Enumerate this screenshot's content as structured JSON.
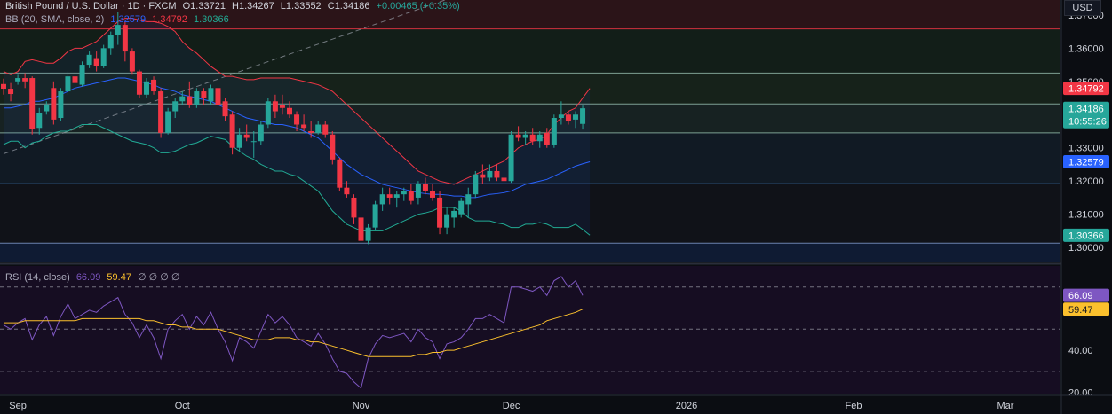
{
  "header": {
    "symbol": "British Pound / U.S. Dollar · 1D · FXCM",
    "open": "O1.33721",
    "high": "H1.34267",
    "low": "L1.33552",
    "close": "C1.34186",
    "change": "+0.00465 (+0.35%)",
    "currency": "USD"
  },
  "bb_legend": {
    "label": "BB (20, SMA, close, 2)",
    "basis": "1.32579",
    "upper": "1.34792",
    "lower": "1.30366"
  },
  "rsi_legend": {
    "label": "RSI (14, close)",
    "rsi": "66.09",
    "ma": "59.47",
    "extras": "∅ ∅ ∅ ∅"
  },
  "colors": {
    "up": "#26a69a",
    "down": "#f23645",
    "bb_basis": "#2962ff",
    "bb_upper": "#f23645",
    "bb_lower": "#22ab94",
    "rsi": "#7e57c2",
    "rsi_ma": "#fbc02d"
  },
  "chart_data": {
    "type": "candlestick",
    "x_labels": [
      "Sep",
      "Oct",
      "Nov",
      "Dec",
      "2026",
      "Feb",
      "Mar"
    ],
    "price_ticks": [
      "1.37000",
      "1.36000",
      "1.35000",
      "1.33000",
      "1.32000",
      "1.31000",
      "1.30000"
    ],
    "price_range": [
      1.2955,
      1.3745
    ],
    "price_badges": [
      {
        "text": "1.34792",
        "value": 1.34792,
        "color": "#f23645"
      },
      {
        "text": "1.34186",
        "value": 1.34186,
        "color": "#26a69a",
        "sub": "10:55:26"
      },
      {
        "text": "1.32579",
        "value": 1.32579,
        "color": "#2962ff"
      },
      {
        "text": "1.30366",
        "value": 1.30366,
        "color": "#26a69a"
      }
    ],
    "horizontal_levels": [
      1.3658,
      1.3525,
      1.3432,
      1.3345,
      1.3192,
      1.3013
    ],
    "trendline": {
      "from": [
        0,
        1.3282
      ],
      "to": [
        84,
        1.3912
      ]
    },
    "candles": [
      [
        1.3492,
        1.3508,
        1.346,
        1.3478
      ],
      [
        1.3478,
        1.3495,
        1.344,
        1.3462
      ],
      [
        1.35,
        1.352,
        1.349,
        1.351
      ],
      [
        1.351,
        1.3525,
        1.348,
        1.35
      ],
      [
        1.351,
        1.3515,
        1.334,
        1.3358
      ],
      [
        1.336,
        1.342,
        1.334,
        1.3405
      ],
      [
        1.341,
        1.344,
        1.34,
        1.343
      ],
      [
        1.348,
        1.35,
        1.337,
        1.3385
      ],
      [
        1.339,
        1.348,
        1.338,
        1.347
      ],
      [
        1.347,
        1.353,
        1.346,
        1.3515
      ],
      [
        1.3515,
        1.353,
        1.348,
        1.3495
      ],
      [
        1.349,
        1.356,
        1.3485,
        1.355
      ],
      [
        1.355,
        1.359,
        1.354,
        1.358
      ],
      [
        1.357,
        1.359,
        1.353,
        1.3545
      ],
      [
        1.3545,
        1.361,
        1.354,
        1.36
      ],
      [
        1.36,
        1.365,
        1.358,
        1.364
      ],
      [
        1.364,
        1.371,
        1.361,
        1.367
      ],
      [
        1.367,
        1.368,
        1.356,
        1.359
      ],
      [
        1.359,
        1.36,
        1.352,
        1.353
      ],
      [
        1.353,
        1.3535,
        1.345,
        1.346
      ],
      [
        1.346,
        1.351,
        1.345,
        1.35
      ],
      [
        1.3505,
        1.3515,
        1.346,
        1.347
      ],
      [
        1.347,
        1.348,
        1.333,
        1.3345
      ],
      [
        1.3345,
        1.342,
        1.334,
        1.341
      ],
      [
        1.341,
        1.345,
        1.339,
        1.344
      ],
      [
        1.344,
        1.347,
        1.343,
        1.3455
      ],
      [
        1.3455,
        1.35,
        1.342,
        1.343
      ],
      [
        1.343,
        1.348,
        1.342,
        1.347
      ],
      [
        1.347,
        1.348,
        1.343,
        1.345
      ],
      [
        1.344,
        1.349,
        1.343,
        1.348
      ],
      [
        1.348,
        1.349,
        1.342,
        1.343
      ],
      [
        1.344,
        1.345,
        1.338,
        1.3395
      ],
      [
        1.34,
        1.341,
        1.328,
        1.33
      ],
      [
        1.33,
        1.336,
        1.329,
        1.334
      ],
      [
        1.334,
        1.337,
        1.332,
        1.333
      ],
      [
        1.332,
        1.335,
        1.327,
        1.332
      ],
      [
        1.332,
        1.338,
        1.331,
        1.337
      ],
      [
        1.337,
        1.345,
        1.336,
        1.344
      ],
      [
        1.344,
        1.346,
        1.339,
        1.341
      ],
      [
        1.343,
        1.346,
        1.34,
        1.342
      ],
      [
        1.342,
        1.344,
        1.339,
        1.34
      ],
      [
        1.34,
        1.341,
        1.335,
        1.337
      ],
      [
        1.337,
        1.34,
        1.335,
        1.336
      ],
      [
        1.335,
        1.338,
        1.333,
        1.3345
      ],
      [
        1.3345,
        1.338,
        1.334,
        1.337
      ],
      [
        1.337,
        1.338,
        1.333,
        1.334
      ],
      [
        1.334,
        1.335,
        1.325,
        1.3265
      ],
      [
        1.3265,
        1.327,
        1.317,
        1.318
      ],
      [
        1.318,
        1.32,
        1.315,
        1.316
      ],
      [
        1.315,
        1.316,
        1.307,
        1.309
      ],
      [
        1.309,
        1.31,
        1.301,
        1.302
      ],
      [
        1.302,
        1.307,
        1.301,
        1.306
      ],
      [
        1.306,
        1.314,
        1.305,
        1.313
      ],
      [
        1.313,
        1.318,
        1.311,
        1.316
      ],
      [
        1.316,
        1.318,
        1.313,
        1.315
      ],
      [
        1.315,
        1.317,
        1.312,
        1.316
      ],
      [
        1.316,
        1.318,
        1.314,
        1.317
      ],
      [
        1.317,
        1.319,
        1.313,
        1.314
      ],
      [
        1.315,
        1.32,
        1.313,
        1.319
      ],
      [
        1.319,
        1.321,
        1.316,
        1.317
      ],
      [
        1.317,
        1.319,
        1.314,
        1.315
      ],
      [
        1.315,
        1.317,
        1.304,
        1.306
      ],
      [
        1.306,
        1.312,
        1.304,
        1.31
      ],
      [
        1.309,
        1.312,
        1.306,
        1.311
      ],
      [
        1.31,
        1.315,
        1.309,
        1.314
      ],
      [
        1.313,
        1.318,
        1.309,
        1.316
      ],
      [
        1.316,
        1.323,
        1.315,
        1.322
      ],
      [
        1.322,
        1.325,
        1.319,
        1.321
      ],
      [
        1.321,
        1.325,
        1.32,
        1.323
      ],
      [
        1.323,
        1.325,
        1.32,
        1.321
      ],
      [
        1.321,
        1.323,
        1.319,
        1.32
      ],
      [
        1.32,
        1.335,
        1.3195,
        1.334
      ],
      [
        1.334,
        1.3365,
        1.332,
        1.333
      ],
      [
        1.333,
        1.335,
        1.331,
        1.334
      ],
      [
        1.334,
        1.336,
        1.331,
        1.332
      ],
      [
        1.332,
        1.335,
        1.33,
        1.334
      ],
      [
        1.3345,
        1.336,
        1.33,
        1.331
      ],
      [
        1.331,
        1.34,
        1.33,
        1.339
      ],
      [
        1.339,
        1.344,
        1.337,
        1.34
      ],
      [
        1.34,
        1.341,
        1.337,
        1.338
      ],
      [
        1.3385,
        1.341,
        1.336,
        1.34
      ],
      [
        1.3372,
        1.3427,
        1.3355,
        1.3419
      ]
    ],
    "bollinger": {
      "upper": [
        1.353,
        1.352,
        1.353,
        1.356,
        1.3565,
        1.356,
        1.3555,
        1.3555,
        1.357,
        1.359,
        1.36,
        1.36,
        1.361,
        1.362,
        1.364,
        1.366,
        1.368,
        1.369,
        1.369,
        1.3685,
        1.368,
        1.368,
        1.3675,
        1.3665,
        1.365,
        1.362,
        1.36,
        1.3585,
        1.3565,
        1.3545,
        1.353,
        1.3515,
        1.3515,
        1.351,
        1.3505,
        1.3505,
        1.351,
        1.351,
        1.351,
        1.351,
        1.351,
        1.3505,
        1.35,
        1.3495,
        1.349,
        1.348,
        1.347,
        1.345,
        1.343,
        1.341,
        1.339,
        1.337,
        1.335,
        1.333,
        1.331,
        1.329,
        1.327,
        1.325,
        1.323,
        1.322,
        1.321,
        1.32,
        1.3195,
        1.319,
        1.32,
        1.321,
        1.322,
        1.323,
        1.324,
        1.325,
        1.326,
        1.328,
        1.33,
        1.331,
        1.332,
        1.3325,
        1.334,
        1.337,
        1.339,
        1.341,
        1.342,
        1.345,
        1.3479
      ],
      "basis": [
        1.342,
        1.342,
        1.3425,
        1.343,
        1.344,
        1.344,
        1.3445,
        1.345,
        1.346,
        1.347,
        1.348,
        1.3485,
        1.349,
        1.3495,
        1.35,
        1.3505,
        1.351,
        1.351,
        1.3505,
        1.35,
        1.3495,
        1.349,
        1.348,
        1.3475,
        1.347,
        1.346,
        1.3455,
        1.345,
        1.3445,
        1.344,
        1.343,
        1.342,
        1.341,
        1.34,
        1.339,
        1.3385,
        1.338,
        1.3375,
        1.337,
        1.337,
        1.3365,
        1.336,
        1.335,
        1.334,
        1.333,
        1.331,
        1.329,
        1.327,
        1.325,
        1.3235,
        1.322,
        1.321,
        1.32,
        1.319,
        1.3185,
        1.318,
        1.3175,
        1.317,
        1.3165,
        1.3162,
        1.316,
        1.316,
        1.3158,
        1.3155,
        1.3155,
        1.315,
        1.315,
        1.3155,
        1.316,
        1.3162,
        1.3165,
        1.317,
        1.318,
        1.319,
        1.3195,
        1.32,
        1.3205,
        1.3215,
        1.3225,
        1.3235,
        1.3245,
        1.3252,
        1.3258
      ],
      "lower": [
        1.331,
        1.332,
        1.332,
        1.33,
        1.3315,
        1.332,
        1.3335,
        1.3345,
        1.335,
        1.335,
        1.336,
        1.337,
        1.337,
        1.337,
        1.336,
        1.335,
        1.334,
        1.333,
        1.332,
        1.3315,
        1.331,
        1.33,
        1.3285,
        1.3285,
        1.329,
        1.33,
        1.331,
        1.3315,
        1.3325,
        1.3335,
        1.333,
        1.3325,
        1.3305,
        1.329,
        1.3275,
        1.3265,
        1.325,
        1.324,
        1.323,
        1.323,
        1.322,
        1.3215,
        1.32,
        1.3185,
        1.317,
        1.314,
        1.311,
        1.309,
        1.307,
        1.306,
        1.305,
        1.305,
        1.305,
        1.305,
        1.306,
        1.307,
        1.308,
        1.309,
        1.31,
        1.3104,
        1.311,
        1.312,
        1.3121,
        1.312,
        1.311,
        1.309,
        1.308,
        1.308,
        1.308,
        1.3074,
        1.307,
        1.306,
        1.306,
        1.307,
        1.307,
        1.3075,
        1.307,
        1.306,
        1.306,
        1.306,
        1.307,
        1.3054,
        1.3037
      ]
    },
    "rsi_ticks": [
      "40.00",
      "20.00"
    ],
    "rsi_range": [
      19,
      80
    ],
    "rsi_levels": [
      70,
      50,
      30
    ],
    "rsi_badges": [
      {
        "text": "66.09",
        "value": 66.09,
        "color": "#7e57c2"
      },
      {
        "text": "59.47",
        "value": 59.47,
        "color": "#fbc02d"
      }
    ],
    "rsi": [
      52,
      50,
      53,
      55,
      45,
      52,
      56,
      47,
      56,
      62,
      55,
      57,
      59,
      58,
      61,
      63,
      65,
      57,
      53,
      46,
      52,
      46,
      36,
      50,
      54,
      57,
      50,
      56,
      52,
      58,
      50,
      44,
      35,
      46,
      44,
      41,
      49,
      57,
      53,
      56,
      52,
      46,
      44,
      42,
      48,
      43,
      36,
      30,
      29,
      25,
      22,
      36,
      43,
      47,
      46,
      47,
      48,
      44,
      50,
      46,
      44,
      36,
      43,
      44,
      46,
      50,
      55,
      55,
      57,
      55,
      53,
      70,
      70,
      69,
      68,
      70,
      66,
      73,
      75,
      70,
      73,
      66
    ],
    "rsi_ma": [
      53,
      53,
      53,
      54,
      54,
      54,
      54,
      54,
      54,
      54,
      54,
      55,
      55,
      55,
      55,
      55,
      55,
      55,
      55,
      55,
      54,
      54,
      53,
      52,
      52,
      51,
      51,
      50,
      50,
      50,
      50,
      49,
      48,
      47,
      46,
      45,
      45,
      45,
      46,
      46,
      46,
      45,
      45,
      44,
      44,
      43,
      42,
      41,
      40,
      39,
      38,
      37,
      37,
      37,
      37,
      37,
      37,
      37,
      38,
      38,
      39,
      39,
      40,
      40,
      41,
      42,
      43,
      44,
      45,
      46,
      47,
      48,
      49,
      50,
      51,
      52,
      54,
      55,
      56,
      57,
      58,
      59.5
    ]
  }
}
